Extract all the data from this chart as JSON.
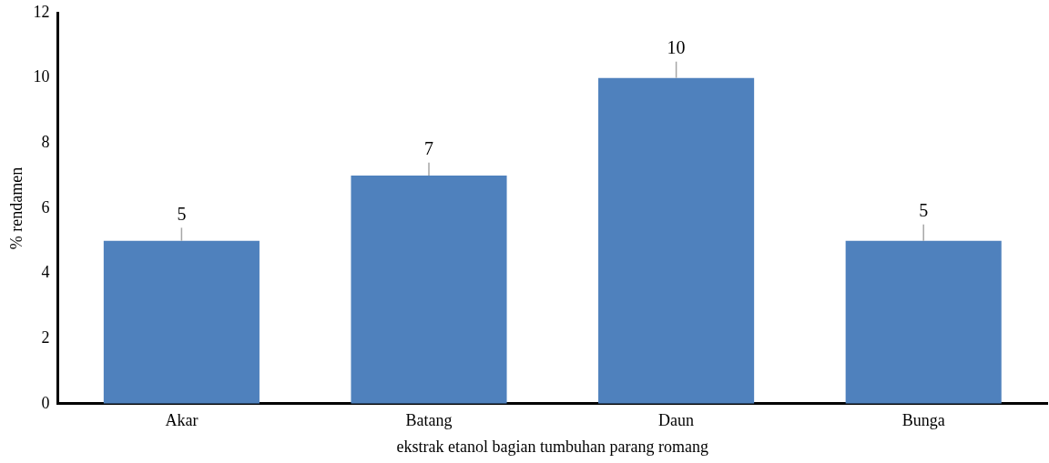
{
  "chart_data": {
    "type": "bar",
    "xlabel": "ekstrak etanol bagian tumbuhan parang romang",
    "ylabel": "% rendamen",
    "categories": [
      "Akar",
      "Batang",
      "Daun",
      "Bunga"
    ],
    "values": [
      5,
      7,
      10,
      5
    ],
    "errors": [
      0.4,
      0.4,
      0.5,
      0.5
    ],
    "color": "#4f81bd",
    "ylim": [
      0,
      12
    ],
    "yticks": [
      0,
      2,
      4,
      6,
      8,
      10,
      12
    ],
    "grid": false,
    "legend": false,
    "data_labels": true
  }
}
